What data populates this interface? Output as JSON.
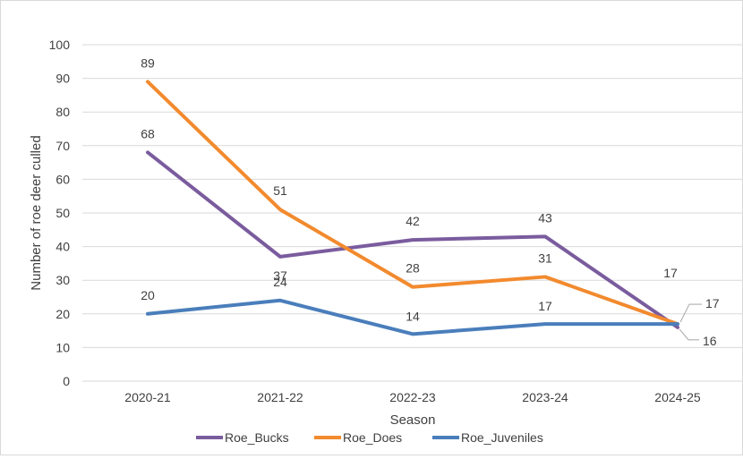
{
  "chart_data": {
    "type": "line",
    "title": "",
    "xlabel": "Season",
    "ylabel": "Number of roe deer culled",
    "categories": [
      "2020-21",
      "2021-22",
      "2022-23",
      "2023-24",
      "2024-25"
    ],
    "ylim": [
      0,
      100
    ],
    "yticks": [
      0,
      10,
      20,
      30,
      40,
      50,
      60,
      70,
      80,
      90,
      100
    ],
    "grid": true,
    "legend_position": "bottom",
    "series": [
      {
        "name": "Roe_Bucks",
        "values": [
          68,
          37,
          42,
          43,
          16
        ],
        "color": "#7A5C9E"
      },
      {
        "name": "Roe_Does",
        "values": [
          89,
          51,
          28,
          31,
          17
        ],
        "color": "#F28A2E"
      },
      {
        "name": "Roe_Juveniles",
        "values": [
          20,
          24,
          14,
          17,
          17
        ],
        "color": "#4A7EBB"
      }
    ]
  }
}
